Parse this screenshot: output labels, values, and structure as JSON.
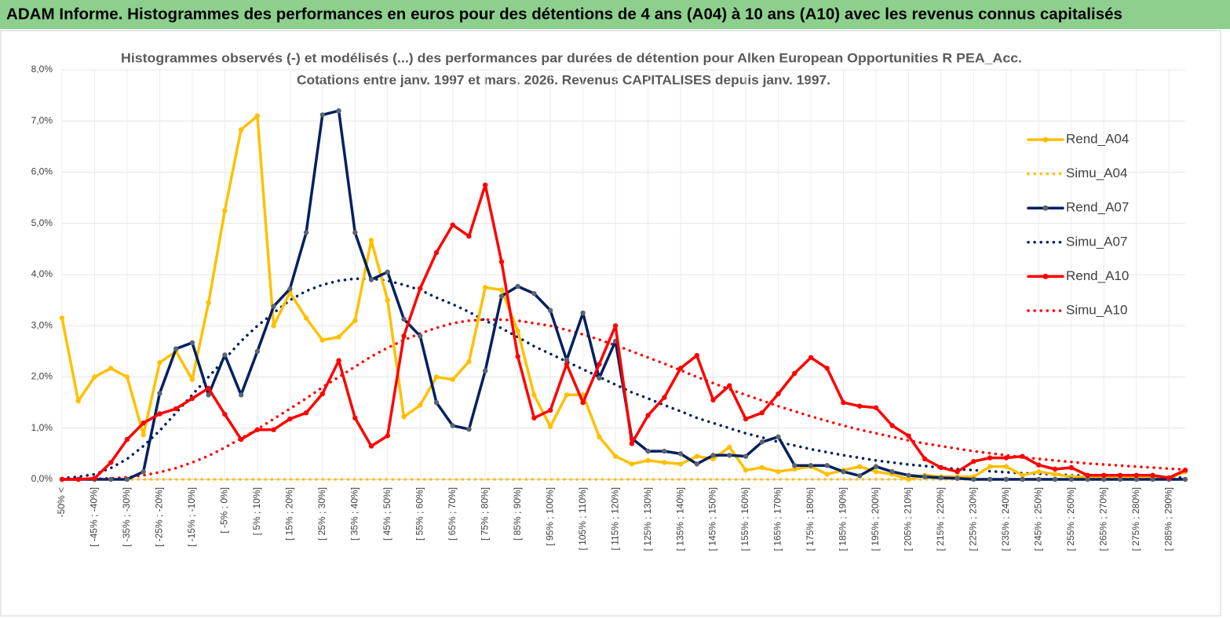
{
  "header": {
    "title": "ADAM Informe. Histogrammes des performances en euros pour des détentions de 4 ans (A04) à 10 ans (A10) avec les revenus connus capitalisés"
  },
  "chart_data": {
    "type": "line",
    "title": "Histogrammes observés (-) et modélisés (...) des performances par durées de détention pour Alken European Opportunities R PEA_Acc.",
    "subtitle": "Cotations entre janv. 1997 et mars. 2026. Revenus CAPITALISES depuis janv. 1997.",
    "categories": [
      "-50% <",
      null,
      "[ -45% ; -40%]",
      null,
      "[ -35% ; -30%]",
      null,
      "[ -25% ; -20%]",
      null,
      "[ -15% ; -10%]",
      null,
      "[ -5% ; 0%]",
      null,
      "[ 5% ; 10%]",
      null,
      "[ 15% ; 20%]",
      null,
      "[ 25% ; 30%]",
      null,
      "[ 35% ; 40%]",
      null,
      "[ 45% ; 50%]",
      null,
      "[ 55% ; 60%]",
      null,
      "[ 65% ; 70%]",
      null,
      "[ 75% ; 80%]",
      null,
      "[ 85% ; 90%]",
      null,
      "[ 95% ; 100%]",
      null,
      "[ 105% ; 110%]",
      null,
      "[ 115% ; 120%]",
      null,
      "[ 125% ; 130%]",
      null,
      "[ 135% ; 140%]",
      null,
      "[ 145% ; 150%]",
      null,
      "[ 155% ; 160%]",
      null,
      "[ 165% ; 170%]",
      null,
      "[ 175% ; 180%]",
      null,
      "[ 185% ; 190%]",
      null,
      "[ 195% ; 200%]",
      null,
      "[ 205% ; 210%]",
      null,
      "[ 215% ; 220%]",
      null,
      "[ 225% ; 230%]",
      null,
      "[ 235% ; 240%]",
      null,
      "[ 245% ; 250%]",
      null,
      "[ 255% ; 260%]",
      null,
      "[ 265% ; 270%]",
      null,
      "[ 275% ; 280%]",
      null,
      "[ 285% ; 290%]",
      null
    ],
    "series": [
      {
        "name": "Rend_A04",
        "color": "#ffc000",
        "linestyle": "solid",
        "marker": true,
        "marker_color": "#ffc000",
        "values": [
          3.15,
          1.53,
          2.0,
          2.17,
          2.0,
          0.87,
          2.28,
          2.5,
          1.95,
          3.45,
          5.25,
          6.83,
          7.1,
          3.0,
          3.65,
          3.15,
          2.72,
          2.78,
          3.1,
          4.67,
          3.5,
          1.22,
          1.45,
          2.0,
          1.95,
          2.3,
          3.75,
          3.7,
          2.9,
          1.65,
          1.03,
          1.65,
          1.65,
          0.83,
          0.45,
          0.3,
          0.37,
          0.33,
          0.3,
          0.45,
          0.4,
          0.63,
          0.18,
          0.23,
          0.15,
          0.2,
          0.25,
          0.1,
          0.18,
          0.25,
          0.15,
          0.1,
          0.0,
          0.08,
          0.05,
          0.05,
          0.05,
          0.25,
          0.25,
          0.08,
          0.15,
          0.1,
          0.05,
          0.05,
          0.05,
          0.05,
          0.05,
          0.05,
          0.02,
          0.15
        ]
      },
      {
        "name": "Simu_A04",
        "color": "#ffc000",
        "linestyle": "dotted",
        "marker": false,
        "values": [
          0,
          0,
          0,
          0,
          0,
          0,
          0,
          0,
          0,
          0,
          0,
          0,
          0,
          0,
          0,
          0,
          0,
          0,
          0,
          0,
          0,
          0,
          0,
          0,
          0,
          0,
          0,
          0,
          0,
          0,
          0,
          0,
          0,
          0,
          0,
          0,
          0,
          0,
          0,
          0,
          0,
          0,
          0,
          0,
          0,
          0,
          0,
          0,
          0,
          0,
          0,
          0,
          0,
          0,
          0,
          0,
          0,
          0,
          0,
          0,
          0,
          0,
          0,
          0,
          0,
          0,
          0,
          0,
          0,
          0
        ]
      },
      {
        "name": "Rend_A07",
        "color": "#002060",
        "linestyle": "solid",
        "marker": true,
        "marker_color": "#5a6472",
        "values": [
          0,
          0,
          0,
          0,
          0,
          0.15,
          1.68,
          2.55,
          2.67,
          1.65,
          2.43,
          1.65,
          2.5,
          3.38,
          3.72,
          4.82,
          7.12,
          7.2,
          4.82,
          3.9,
          4.05,
          3.13,
          2.8,
          1.5,
          1.05,
          0.98,
          2.12,
          3.58,
          3.77,
          3.63,
          3.3,
          2.33,
          3.25,
          1.98,
          2.7,
          0.8,
          0.55,
          0.55,
          0.5,
          0.3,
          0.47,
          0.47,
          0.45,
          0.73,
          0.83,
          0.27,
          0.27,
          0.27,
          0.15,
          0.07,
          0.25,
          0.15,
          0.08,
          0.05,
          0.03,
          0.02,
          0,
          0,
          0,
          0,
          0,
          0,
          0,
          0,
          0,
          0,
          0,
          0,
          0,
          0
        ]
      },
      {
        "name": "Simu_A07",
        "color": "#002060",
        "linestyle": "dotted",
        "marker": false,
        "values": [
          0.02,
          0.05,
          0.1,
          0.22,
          0.4,
          0.65,
          0.95,
          1.3,
          1.65,
          2.0,
          2.35,
          2.7,
          3.0,
          3.25,
          3.5,
          3.68,
          3.8,
          3.88,
          3.92,
          3.92,
          3.88,
          3.8,
          3.7,
          3.55,
          3.42,
          3.27,
          3.1,
          2.95,
          2.78,
          2.6,
          2.45,
          2.3,
          2.15,
          2.0,
          1.85,
          1.7,
          1.58,
          1.45,
          1.33,
          1.2,
          1.1,
          1.0,
          0.9,
          0.82,
          0.73,
          0.66,
          0.59,
          0.53,
          0.47,
          0.42,
          0.37,
          0.33,
          0.29,
          0.26,
          0.23,
          0.2,
          0.18,
          0.16,
          0.14,
          0.12,
          0.11,
          0.1,
          0.08,
          0.07,
          0.06,
          0.05,
          0.05,
          0.04,
          0.04,
          0.03
        ]
      },
      {
        "name": "Rend_A10",
        "color": "#ff0000",
        "linestyle": "solid",
        "marker": true,
        "marker_color": "#ff0000",
        "values": [
          0,
          0,
          0.02,
          0.33,
          0.78,
          1.1,
          1.28,
          1.38,
          1.58,
          1.78,
          1.27,
          0.78,
          0.97,
          0.97,
          1.18,
          1.3,
          1.67,
          2.32,
          1.2,
          0.65,
          0.85,
          2.8,
          3.73,
          4.43,
          4.97,
          4.75,
          5.75,
          4.25,
          2.4,
          1.2,
          1.35,
          2.25,
          1.5,
          2.25,
          3.0,
          0.7,
          1.25,
          1.6,
          2.17,
          2.42,
          1.55,
          1.83,
          1.18,
          1.3,
          1.67,
          2.07,
          2.38,
          2.17,
          1.5,
          1.43,
          1.4,
          1.05,
          0.85,
          0.4,
          0.23,
          0.15,
          0.35,
          0.42,
          0.42,
          0.45,
          0.28,
          0.2,
          0.23,
          0.08,
          0.08,
          0.08,
          0.08,
          0.08,
          0.03,
          0.18
        ]
      },
      {
        "name": "Simu_A10",
        "color": "#ff0000",
        "linestyle": "dotted",
        "marker": false,
        "values": [
          0,
          0,
          0.01,
          0.02,
          0.04,
          0.08,
          0.14,
          0.22,
          0.33,
          0.46,
          0.62,
          0.8,
          0.98,
          1.18,
          1.38,
          1.58,
          1.8,
          2.0,
          2.2,
          2.4,
          2.57,
          2.72,
          2.85,
          2.96,
          3.05,
          3.1,
          3.12,
          3.12,
          3.1,
          3.05,
          3.0,
          2.92,
          2.83,
          2.73,
          2.62,
          2.5,
          2.38,
          2.26,
          2.13,
          2.0,
          1.88,
          1.76,
          1.65,
          1.54,
          1.43,
          1.33,
          1.23,
          1.14,
          1.05,
          0.97,
          0.9,
          0.83,
          0.76,
          0.7,
          0.65,
          0.6,
          0.55,
          0.51,
          0.47,
          0.43,
          0.4,
          0.37,
          0.34,
          0.31,
          0.29,
          0.27,
          0.25,
          0.23,
          0.21,
          0.19
        ]
      }
    ],
    "ylim": [
      0,
      8
    ],
    "yticks": [
      {
        "value": 0,
        "label": "0,0%"
      },
      {
        "value": 1,
        "label": "1,0%"
      },
      {
        "value": 2,
        "label": "2,0%"
      },
      {
        "value": 3,
        "label": "3,0%"
      },
      {
        "value": 4,
        "label": "4,0%"
      },
      {
        "value": 5,
        "label": "5,0%"
      },
      {
        "value": 6,
        "label": "6,0%"
      },
      {
        "value": 7,
        "label": "7,0%"
      },
      {
        "value": 8,
        "label": "8,0%"
      }
    ],
    "grid": true,
    "legend": "right"
  }
}
